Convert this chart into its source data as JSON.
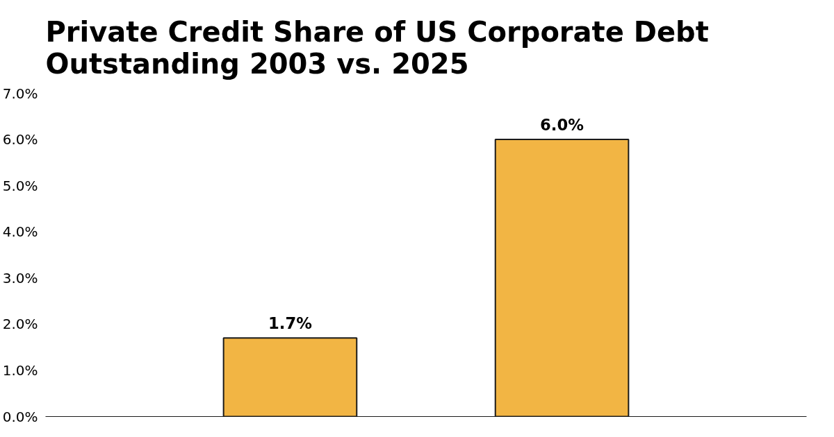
{
  "chart_data": {
    "type": "bar",
    "title": "Private Credit Share of US Corporate Debt\nOutstanding 2003 vs. 2025",
    "categories": [
      null,
      null
    ],
    "values": [
      1.7,
      6.0
    ],
    "value_labels": [
      "1.7%",
      "6.0%"
    ],
    "color": "#f2b544",
    "ylim": [
      0,
      7
    ],
    "yticks": [
      {
        "value": 0,
        "label": "0.0%"
      },
      {
        "value": 1,
        "label": "1.0%"
      },
      {
        "value": 2,
        "label": "2.0%"
      },
      {
        "value": 3,
        "label": "3.0%"
      },
      {
        "value": 4,
        "label": "4.0%"
      },
      {
        "value": 5,
        "label": "5.0%"
      },
      {
        "value": 6,
        "label": "6.0%"
      },
      {
        "value": 7,
        "label": "7.0%"
      }
    ],
    "grid": false
  }
}
